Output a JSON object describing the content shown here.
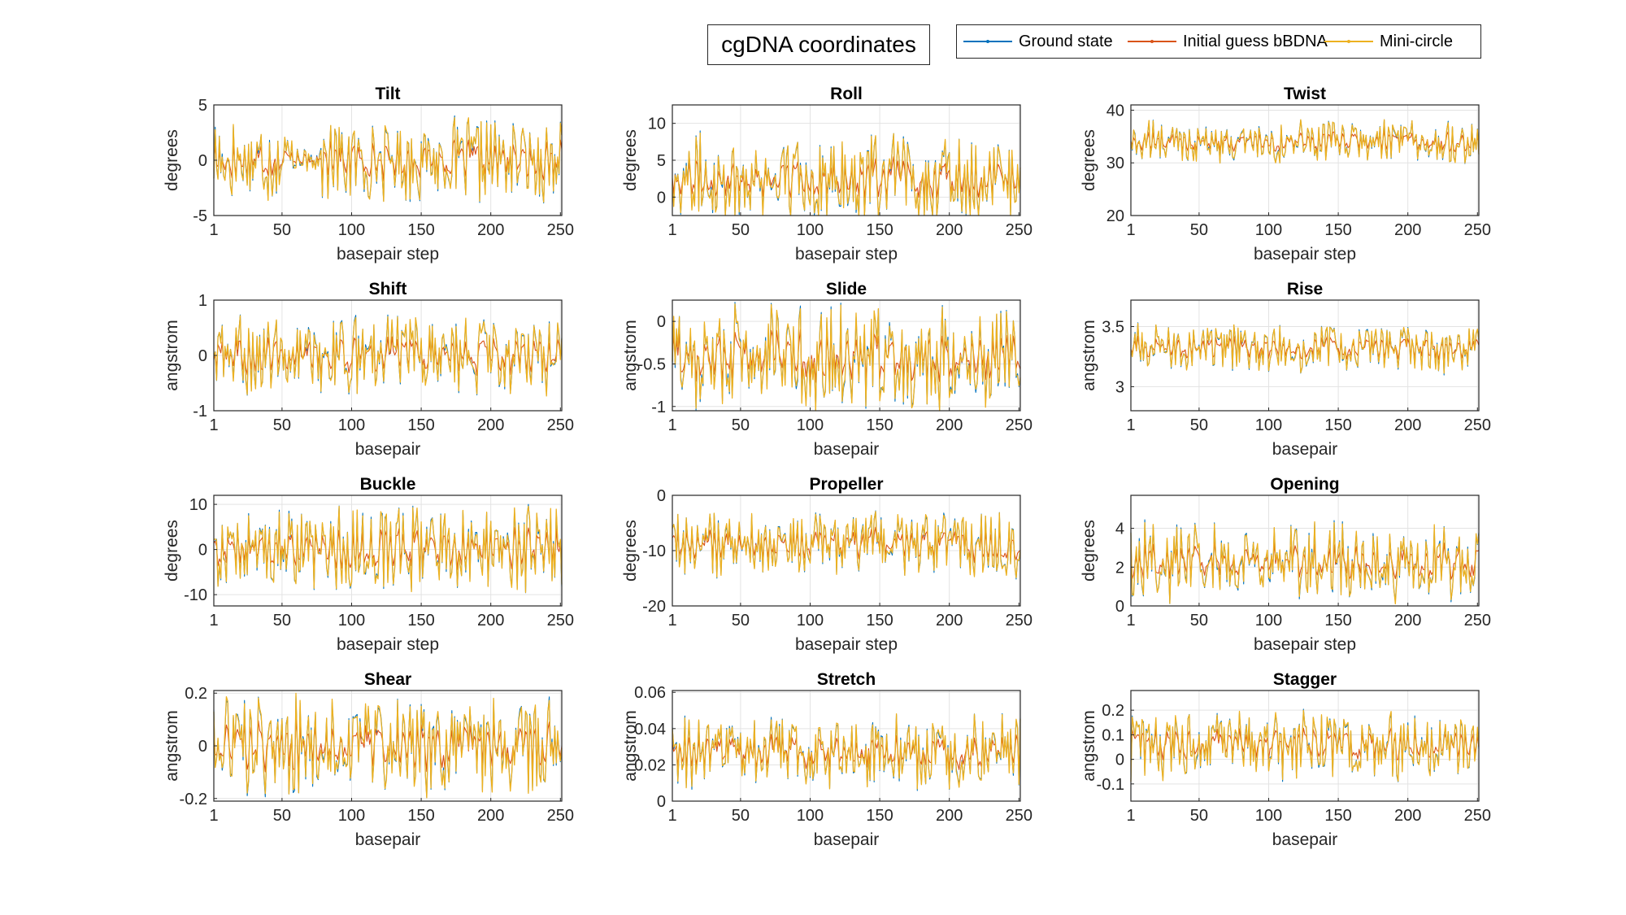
{
  "figure_title": "cgDNA coordinates",
  "colors": {
    "ground_state": "#0072BD",
    "initial_guess": "#D95319",
    "mini_circle": "#EDB120"
  },
  "legend": [
    {
      "name": "Ground state",
      "color": "#0072BD"
    },
    {
      "name": "Initial guess bBDNA",
      "color": "#D95319"
    },
    {
      "name": "Mini-circle",
      "color": "#EDB120"
    }
  ],
  "chart_data": [
    {
      "type": "line",
      "title": "Tilt",
      "xlabel": "basepair step",
      "ylabel": "degrees",
      "xlim": [
        1,
        251
      ],
      "ylim": [
        -5,
        5
      ],
      "xticks": [
        1,
        50,
        100,
        150,
        200,
        250
      ],
      "yticks": [
        -5,
        0,
        5
      ],
      "grid": true,
      "n_points": 251,
      "series_names": [
        "Ground state",
        "Initial guess bBDNA",
        "Mini-circle"
      ],
      "approx_mean": 0,
      "approx_amplitude": 3.2,
      "flat_region": [
        58,
        78
      ]
    },
    {
      "type": "line",
      "title": "Roll",
      "xlabel": "basepair step",
      "ylabel": "degrees",
      "xlim": [
        1,
        251
      ],
      "ylim": [
        -2.5,
        12.5
      ],
      "xticks": [
        1,
        50,
        100,
        150,
        200,
        250
      ],
      "yticks": [
        0,
        5,
        10
      ],
      "grid": true,
      "n_points": 251,
      "series_names": [
        "Ground state",
        "Initial guess bBDNA",
        "Mini-circle"
      ],
      "approx_mean": 2.5,
      "approx_amplitude": 5
    },
    {
      "type": "line",
      "title": "Twist",
      "xlabel": "basepair step",
      "ylabel": "degrees",
      "xlim": [
        1,
        251
      ],
      "ylim": [
        20,
        41
      ],
      "xticks": [
        1,
        50,
        100,
        150,
        200,
        250
      ],
      "yticks": [
        20,
        30,
        40
      ],
      "grid": true,
      "n_points": 251,
      "series_names": [
        "Ground state",
        "Initial guess bBDNA",
        "Mini-circle"
      ],
      "approx_mean": 34,
      "approx_amplitude": 3.5
    },
    {
      "type": "line",
      "title": "Shift",
      "xlabel": "basepair",
      "ylabel": "angstrom",
      "xlim": [
        1,
        251
      ],
      "ylim": [
        -1,
        1
      ],
      "xticks": [
        1,
        50,
        100,
        150,
        200,
        250
      ],
      "yticks": [
        -1,
        0,
        1
      ],
      "grid": true,
      "n_points": 251,
      "series_names": [
        "Ground state",
        "Initial guess bBDNA",
        "Mini-circle"
      ],
      "approx_mean": 0,
      "approx_amplitude": 0.6
    },
    {
      "type": "line",
      "title": "Slide",
      "xlabel": "basepair",
      "ylabel": "angstrom",
      "xlim": [
        1,
        251
      ],
      "ylim": [
        -1.05,
        0.25
      ],
      "xticks": [
        1,
        50,
        100,
        150,
        200,
        250
      ],
      "yticks": [
        -1,
        -0.5,
        0
      ],
      "grid": true,
      "n_points": 251,
      "series_names": [
        "Ground state",
        "Initial guess bBDNA",
        "Mini-circle"
      ],
      "approx_mean": -0.4,
      "approx_amplitude": 0.55
    },
    {
      "type": "line",
      "title": "Rise",
      "xlabel": "basepair",
      "ylabel": "angstrom",
      "xlim": [
        1,
        251
      ],
      "ylim": [
        2.8,
        3.72
      ],
      "xticks": [
        1,
        50,
        100,
        150,
        200,
        250
      ],
      "yticks": [
        3,
        3.5
      ],
      "grid": true,
      "n_points": 251,
      "series_names": [
        "Ground state",
        "Initial guess bBDNA",
        "Mini-circle"
      ],
      "approx_mean": 3.32,
      "approx_amplitude": 0.18
    },
    {
      "type": "line",
      "title": "Buckle",
      "xlabel": "basepair step",
      "ylabel": "degrees",
      "xlim": [
        1,
        251
      ],
      "ylim": [
        -12.5,
        12
      ],
      "xticks": [
        1,
        50,
        100,
        150,
        200,
        250
      ],
      "yticks": [
        -10,
        0,
        10
      ],
      "grid": true,
      "n_points": 251,
      "series_names": [
        "Ground state",
        "Initial guess bBDNA",
        "Mini-circle"
      ],
      "approx_mean": 0,
      "approx_amplitude": 8
    },
    {
      "type": "line",
      "title": "Propeller",
      "xlabel": "basepair step",
      "ylabel": "degrees",
      "xlim": [
        1,
        251
      ],
      "ylim": [
        -20,
        0
      ],
      "xticks": [
        1,
        50,
        100,
        150,
        200,
        250
      ],
      "yticks": [
        -20,
        -10,
        0
      ],
      "grid": true,
      "n_points": 251,
      "series_names": [
        "Ground state",
        "Initial guess bBDNA",
        "Mini-circle"
      ],
      "approx_mean": -9,
      "approx_amplitude": 5
    },
    {
      "type": "line",
      "title": "Opening",
      "xlabel": "basepair step",
      "ylabel": "degrees",
      "xlim": [
        1,
        251
      ],
      "ylim": [
        0,
        5.7
      ],
      "xticks": [
        1,
        50,
        100,
        150,
        200,
        250
      ],
      "yticks": [
        0,
        2,
        4
      ],
      "grid": true,
      "n_points": 251,
      "series_names": [
        "Ground state",
        "Initial guess bBDNA",
        "Mini-circle"
      ],
      "approx_mean": 2.3,
      "approx_amplitude": 1.8
    },
    {
      "type": "line",
      "title": "Shear",
      "xlabel": "basepair",
      "ylabel": "angstrom",
      "xlim": [
        1,
        251
      ],
      "ylim": [
        -0.21,
        0.21
      ],
      "xticks": [
        1,
        50,
        100,
        150,
        200,
        250
      ],
      "yticks": [
        -0.2,
        0,
        0.2
      ],
      "grid": true,
      "n_points": 251,
      "series_names": [
        "Ground state",
        "Initial guess bBDNA",
        "Mini-circle"
      ],
      "approx_mean": 0,
      "approx_amplitude": 0.16
    },
    {
      "type": "line",
      "title": "Stretch",
      "xlabel": "basepair",
      "ylabel": "angstrom",
      "xlim": [
        1,
        251
      ],
      "ylim": [
        0,
        0.061
      ],
      "xticks": [
        1,
        50,
        100,
        150,
        200,
        250
      ],
      "yticks": [
        0,
        0.02,
        0.04,
        0.06
      ],
      "grid": true,
      "n_points": 251,
      "series_names": [
        "Ground state",
        "Initial guess bBDNA",
        "Mini-circle"
      ],
      "approx_mean": 0.027,
      "approx_amplitude": 0.018
    },
    {
      "type": "line",
      "title": "Stagger",
      "xlabel": "basepair",
      "ylabel": "angstrom",
      "xlim": [
        1,
        251
      ],
      "ylim": [
        -0.17,
        0.28
      ],
      "xticks": [
        1,
        50,
        100,
        150,
        200,
        250
      ],
      "yticks": [
        -0.1,
        0,
        0.1,
        0.2
      ],
      "grid": true,
      "n_points": 251,
      "series_names": [
        "Ground state",
        "Initial guess bBDNA",
        "Mini-circle"
      ],
      "approx_mean": 0.06,
      "approx_amplitude": 0.12
    }
  ]
}
